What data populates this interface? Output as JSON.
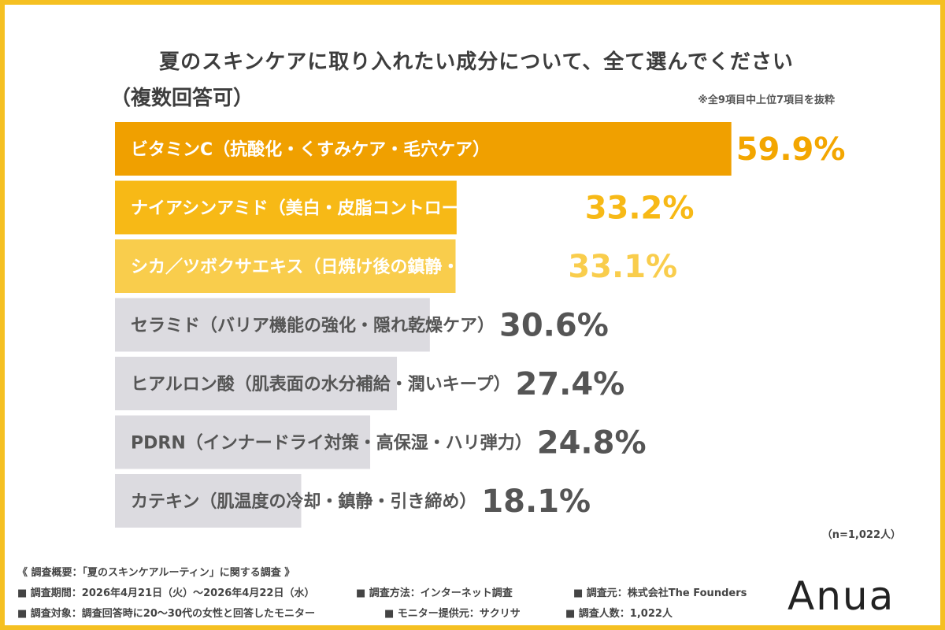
{
  "title_line1": "夏のスキンケアに取り入れたい成分について、全て選んでください",
  "title_line2": "（複数回答可）",
  "note": "※全9項目中上位7項目を抜粋",
  "sample_size": "（n=1,022人）",
  "chart_data": {
    "type": "bar",
    "orientation": "horizontal",
    "categories": [
      "ビタミンC（抗酸化・くすみケア・毛穴ケア）",
      "ナイアシンアミド（美白・皮脂コントロール・シワ改善）",
      "シカ／ツボクサエキス（日焼け後の鎮静・肌荒れ防止）",
      "セラミド（バリア機能の強化・隠れ乾燥ケア）",
      "ヒアルロン酸（肌表面の水分補給・潤いキープ）",
      "PDRN（インナードライ対策・高保湿・ハリ弾力）",
      "カテキン（肌温度の冷却・鎮静・引き締め）"
    ],
    "values": [
      59.9,
      33.2,
      33.1,
      30.6,
      27.4,
      24.8,
      18.1
    ],
    "value_labels": [
      "59.9%",
      "33.2%",
      "33.1%",
      "30.6%",
      "27.4%",
      "24.8%",
      "18.1%"
    ],
    "bar_colors": [
      "#f0a000",
      "#f7b916",
      "#f9cd4c",
      "#dcdbe0",
      "#dcdbe0",
      "#dcdbe0",
      "#dcdbe0"
    ],
    "label_colors": [
      "#ffffff",
      "#ffffff",
      "#ffffff",
      "#555555",
      "#555555",
      "#555555",
      "#555555"
    ],
    "pct_colors": [
      "#f3a600",
      "#f7b916",
      "#f9cd4c",
      "#555555",
      "#555555",
      "#555555",
      "#555555"
    ],
    "xlim": [
      0,
      60
    ]
  },
  "footer": {
    "summary": "《 調査概要：「夏のスキンケアルーティン」に関する調査 》",
    "period": "■ 調査期間：2026年4月21日（火）〜2026年4月22日（水）",
    "method": "■ 調査方法：インターネット調査",
    "source": "■ 調査元：株式会社The Founders",
    "target": "■ 調査対象：調査回答時に20〜30代の女性と回答したモニター",
    "provider": "■ モニター提供元：サクリサ",
    "count": "■ 調査人数：1,022人"
  },
  "logo_text": "Anua",
  "colors": {
    "border": "#f5c022"
  }
}
